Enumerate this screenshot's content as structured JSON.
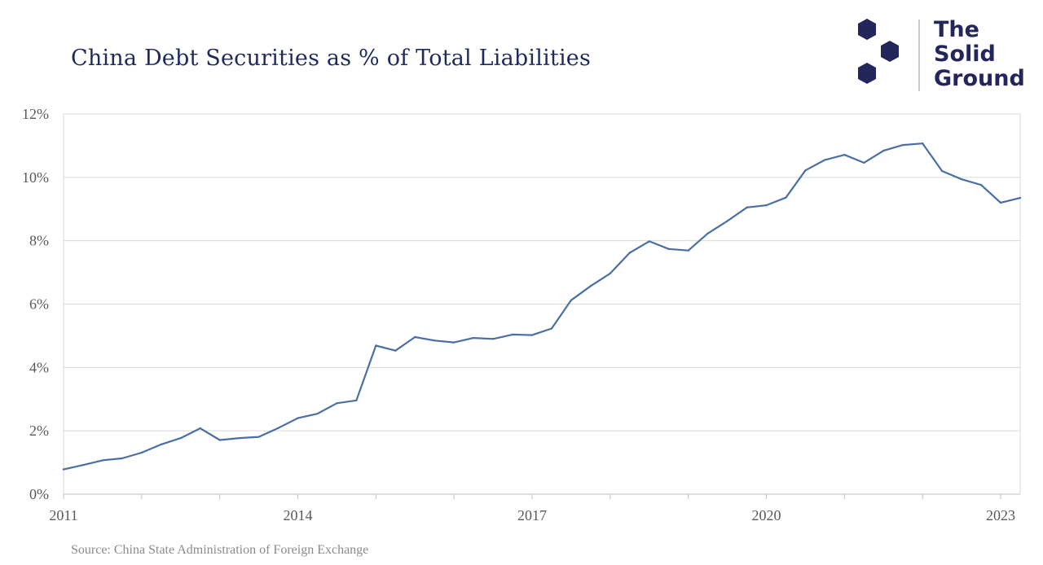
{
  "title": "China Debt Securities as % of Total Liabilities",
  "source": "Source: China State Administration of Foreign Exchange",
  "logo": {
    "lines": [
      "The",
      "Solid",
      "Ground"
    ],
    "color": "#23265a",
    "icon": "hexagon-cluster-icon"
  },
  "chart_data": {
    "type": "line",
    "title": "China Debt Securities as % of Total Liabilities",
    "xlabel": "",
    "ylabel": "",
    "xlim": [
      2011.0,
      2023.25
    ],
    "ylim": [
      0,
      12
    ],
    "x_ticks": [
      {
        "value": 2011,
        "label": "2011"
      },
      {
        "value": 2014,
        "label": "2014"
      },
      {
        "value": 2017,
        "label": "2017"
      },
      {
        "value": 2020,
        "label": "2020"
      },
      {
        "value": 2023,
        "label": "2023"
      }
    ],
    "y_ticks": [
      {
        "value": 0,
        "label": "0%"
      },
      {
        "value": 2,
        "label": "2%"
      },
      {
        "value": 4,
        "label": "4%"
      },
      {
        "value": 6,
        "label": "6%"
      },
      {
        "value": 8,
        "label": "8%"
      },
      {
        "value": 10,
        "label": "10%"
      },
      {
        "value": 12,
        "label": "12%"
      }
    ],
    "grid": true,
    "line_color": "#4a6fa5",
    "series": [
      {
        "x": [
          2011.0,
          2011.25,
          2011.5,
          2011.75,
          2012.0,
          2012.25,
          2012.5,
          2012.75,
          2013.0,
          2013.25,
          2013.5,
          2013.75,
          2014.0,
          2014.25,
          2014.5,
          2014.75,
          2015.0,
          2015.25,
          2015.5,
          2015.75,
          2016.0,
          2016.25,
          2016.5,
          2016.75,
          2017.0,
          2017.25,
          2017.5,
          2017.75,
          2018.0,
          2018.25,
          2018.5,
          2018.75,
          2019.0,
          2019.25,
          2019.5,
          2019.75,
          2020.0,
          2020.25,
          2020.5,
          2020.75,
          2021.0,
          2021.25,
          2021.5,
          2021.75,
          2022.0,
          2022.25,
          2022.5,
          2022.75,
          2023.0,
          2023.25
        ],
        "values": [
          0.78,
          0.92,
          1.07,
          1.13,
          1.31,
          1.57,
          1.77,
          2.08,
          1.71,
          1.77,
          1.81,
          2.09,
          2.4,
          2.54,
          2.87,
          2.96,
          4.69,
          4.53,
          4.96,
          4.85,
          4.79,
          4.93,
          4.9,
          5.04,
          5.02,
          5.23,
          6.12,
          6.57,
          6.97,
          7.62,
          7.98,
          7.74,
          7.69,
          8.23,
          8.62,
          9.05,
          9.12,
          9.36,
          10.22,
          10.55,
          10.71,
          10.46,
          10.84,
          11.02,
          11.07,
          10.2,
          9.94,
          9.76,
          9.2,
          9.35
        ]
      }
    ]
  }
}
